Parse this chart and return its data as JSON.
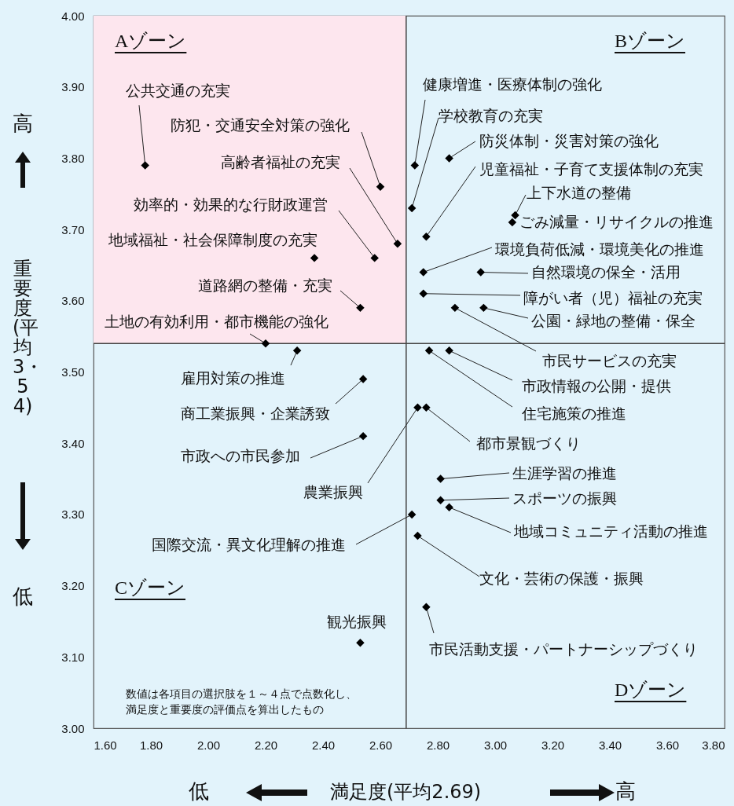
{
  "chart_data": {
    "type": "scatter",
    "xlabel": "満足度(平均2.69)",
    "ylabel": "重要度(平均3・54)",
    "x": [
      1.78,
      2.6,
      2.66,
      2.58,
      2.37,
      2.53,
      2.2,
      2.31,
      2.54,
      2.54,
      2.71,
      2.53,
      2.72,
      2.71,
      2.84,
      2.76,
      3.07,
      3.06,
      2.75,
      2.95,
      2.75,
      2.96,
      2.86,
      2.84,
      2.77,
      2.73,
      2.76,
      2.81,
      2.81,
      2.84,
      2.73,
      2.76
    ],
    "series": [
      {
        "color": "#000000",
        "values": [
          3.79,
          3.76,
          3.68,
          3.66,
          3.66,
          3.59,
          3.54,
          3.53,
          3.49,
          3.41,
          3.3,
          3.12,
          3.79,
          3.73,
          3.8,
          3.69,
          3.72,
          3.71,
          3.64,
          3.64,
          3.61,
          3.59,
          3.59,
          3.53,
          3.53,
          3.45,
          3.45,
          3.35,
          3.32,
          3.31,
          3.27,
          3.17
        ]
      }
    ],
    "xlim": [
      1.6,
      3.8
    ],
    "ylim": [
      3.0,
      4.0
    ],
    "xticks": [
      {
        "value": 1.6,
        "label": "1.60"
      },
      {
        "value": 1.8,
        "label": "1.80"
      },
      {
        "value": 2.0,
        "label": "2.00"
      },
      {
        "value": 2.2,
        "label": "2.20"
      },
      {
        "value": 2.4,
        "label": "2.40"
      },
      {
        "value": 2.6,
        "label": "2.60"
      },
      {
        "value": 2.8,
        "label": "2.80"
      },
      {
        "value": 3.0,
        "label": "3.00"
      },
      {
        "value": 3.2,
        "label": "3.20"
      },
      {
        "value": 3.4,
        "label": "3.40"
      },
      {
        "value": 3.6,
        "label": "3.60"
      },
      {
        "value": 3.8,
        "label": "3.80"
      }
    ],
    "yticks": [
      {
        "value": 3.0,
        "label": "3.00"
      },
      {
        "value": 3.1,
        "label": "3.10"
      },
      {
        "value": 3.2,
        "label": "3.20"
      },
      {
        "value": 3.3,
        "label": "3.30"
      },
      {
        "value": 3.4,
        "label": "3.40"
      },
      {
        "value": 3.5,
        "label": "3.50"
      },
      {
        "value": 3.6,
        "label": "3.60"
      },
      {
        "value": 3.7,
        "label": "3.70"
      },
      {
        "value": 3.8,
        "label": "3.80"
      },
      {
        "value": 3.9,
        "label": "3.90"
      },
      {
        "value": 4.0,
        "label": "4.00"
      }
    ],
    "ref_lines": [
      {
        "axis": "x",
        "value": 2.69,
        "color": "#444444"
      },
      {
        "axis": "y",
        "value": 3.54,
        "color": "#444444"
      }
    ],
    "marker": "diamond",
    "grid": false,
    "annotations": [
      {
        "text": "公共交通の充実",
        "x": 1.78,
        "y": 3.79
      },
      {
        "text": "防犯・交通安全対策の強化",
        "x": 2.6,
        "y": 3.76
      },
      {
        "text": "高齢者福祉の充実",
        "x": 2.66,
        "y": 3.68
      },
      {
        "text": "効率的・効果的な行財政運営",
        "x": 2.58,
        "y": 3.66
      },
      {
        "text": "地域福祉・社会保障制度の充実",
        "x": 2.37,
        "y": 3.66
      },
      {
        "text": "道路網の整備・充実",
        "x": 2.53,
        "y": 3.59
      },
      {
        "text": "土地の有効利用・都市機能の強化",
        "x": 2.2,
        "y": 3.54
      },
      {
        "text": "雇用対策の推進",
        "x": 2.31,
        "y": 3.53
      },
      {
        "text": "商工業振興・企業誘致",
        "x": 2.54,
        "y": 3.49
      },
      {
        "text": "市政への市民参加",
        "x": 2.54,
        "y": 3.41
      },
      {
        "text": "国際交流・異文化理解の推進",
        "x": 2.71,
        "y": 3.3
      },
      {
        "text": "観光振興",
        "x": 2.53,
        "y": 3.12
      },
      {
        "text": "健康増進・医療体制の強化",
        "x": 2.72,
        "y": 3.79
      },
      {
        "text": "学校教育の充実",
        "x": 2.71,
        "y": 3.73
      },
      {
        "text": "防災体制・災害対策の強化",
        "x": 2.84,
        "y": 3.8
      },
      {
        "text": "児童福祉・子育て支援体制の充実",
        "x": 2.76,
        "y": 3.69
      },
      {
        "text": "上下水道の整備",
        "x": 3.07,
        "y": 3.72
      },
      {
        "text": "ごみ減量・リサイクルの推進",
        "x": 3.06,
        "y": 3.71
      },
      {
        "text": "環境負荷低減・環境美化の推進",
        "x": 2.75,
        "y": 3.64
      },
      {
        "text": "自然環境の保全・活用",
        "x": 2.95,
        "y": 3.64
      },
      {
        "text": "障がい者（児）福祉の充実",
        "x": 2.75,
        "y": 3.61
      },
      {
        "text": "公園・緑地の整備・保全",
        "x": 2.96,
        "y": 3.59
      },
      {
        "text": "市民サービスの充実",
        "x": 2.86,
        "y": 3.59
      },
      {
        "text": "市政情報の公開・提供",
        "x": 2.84,
        "y": 3.53
      },
      {
        "text": "住宅施策の推進",
        "x": 2.77,
        "y": 3.53
      },
      {
        "text": "農業振興",
        "x": 2.73,
        "y": 3.45
      },
      {
        "text": "都市景観づくり",
        "x": 2.76,
        "y": 3.45
      },
      {
        "text": "生涯学習の推進",
        "x": 2.81,
        "y": 3.35
      },
      {
        "text": "スポーツの振興",
        "x": 2.81,
        "y": 3.32
      },
      {
        "text": "地域コミュニティ活動の推進",
        "x": 2.84,
        "y": 3.31
      },
      {
        "text": "文化・芸術の保護・振興",
        "x": 2.73,
        "y": 3.27
      },
      {
        "text": "市民活動支援・パートナーシップづくり",
        "x": 2.76,
        "y": 3.17
      },
      "Aゾーン",
      "Bゾーン",
      "Cゾーン",
      "Dゾーン",
      "数値は各項目の選択肢を１～４点で点数化し、満足度と重要度の評価点を算出したもの",
      "高",
      "低",
      "低",
      "高"
    ]
  }
}
